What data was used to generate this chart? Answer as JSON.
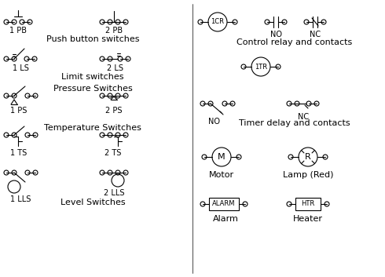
{
  "bg_color": "#ffffff",
  "line_color": "#000000",
  "labels": {
    "push_button": "Push button switches",
    "limit": "Limit switches",
    "pressure": "Pressure Switches",
    "temperature": "Temperature Switches",
    "level": "Level Switches",
    "relay": "Control relay and contacts",
    "timer": "Timer delay and contacts",
    "motor": "Motor",
    "lamp": "Lamp (Red)",
    "alarm": "Alarm",
    "heater": "Heater"
  },
  "symbol_labels": {
    "pb1": "1 PB",
    "pb2": "2 PB",
    "ls1": "1 LS",
    "ls2": "2 LS",
    "ps1": "1 PS",
    "ps2": "2 PS",
    "ts1": "1 TS",
    "ts2": "2 TS",
    "lls1": "1 LLS",
    "lls2": "2 LLS",
    "cr": "1CR",
    "tr": "1TR",
    "no": "NO",
    "nc": "NC",
    "m": "M",
    "r": "R",
    "alarm": "ALARM",
    "htr": "HTR"
  }
}
